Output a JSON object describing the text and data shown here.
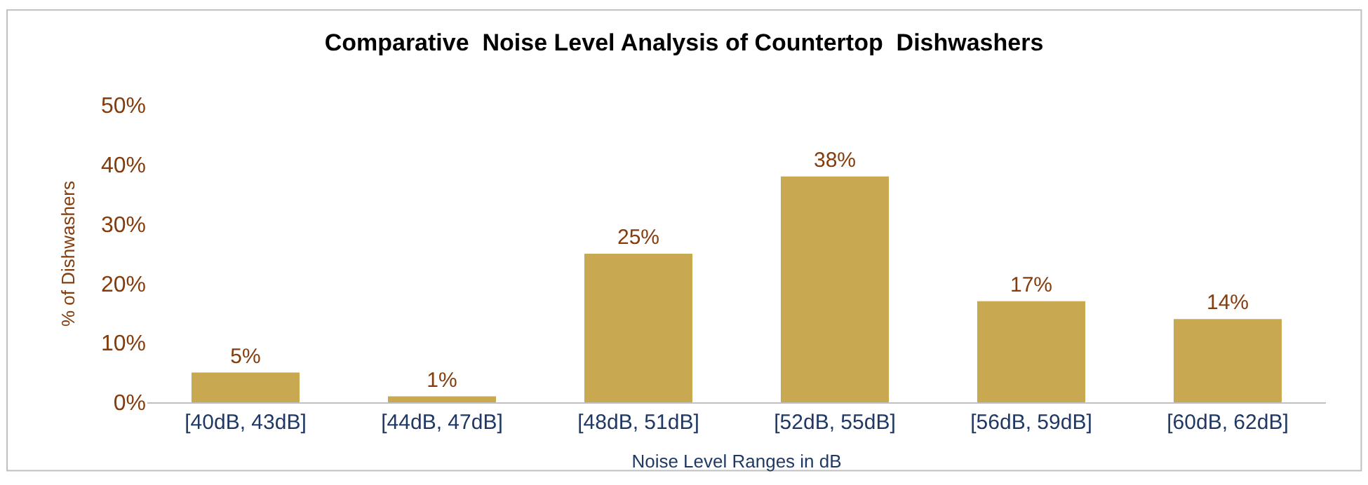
{
  "chart_data": {
    "type": "bar",
    "title": "Comparative  Noise Level Analysis of Countertop  Dishwashers",
    "xlabel": "Noise Level Ranges in dB",
    "ylabel": "% of Dishwashers",
    "categories": [
      "[40dB, 43dB]",
      "[44dB, 47dB]",
      "[48dB, 51dB]",
      "[52dB, 55dB]",
      "[56dB, 59dB]",
      "[60dB, 62dB]"
    ],
    "values": [
      5,
      1,
      25,
      38,
      17,
      14
    ],
    "value_labels": [
      "5%",
      "1%",
      "25%",
      "38%",
      "17%",
      "14%"
    ],
    "color": "#c8a850",
    "ylim": [
      0,
      50
    ],
    "yticks": [
      {
        "value": 0,
        "label": "0%"
      },
      {
        "value": 10,
        "label": "10%"
      },
      {
        "value": 20,
        "label": "20%"
      },
      {
        "value": 30,
        "label": "30%"
      },
      {
        "value": 40,
        "label": "40%"
      },
      {
        "value": 50,
        "label": "50%"
      }
    ],
    "legend": false
  }
}
